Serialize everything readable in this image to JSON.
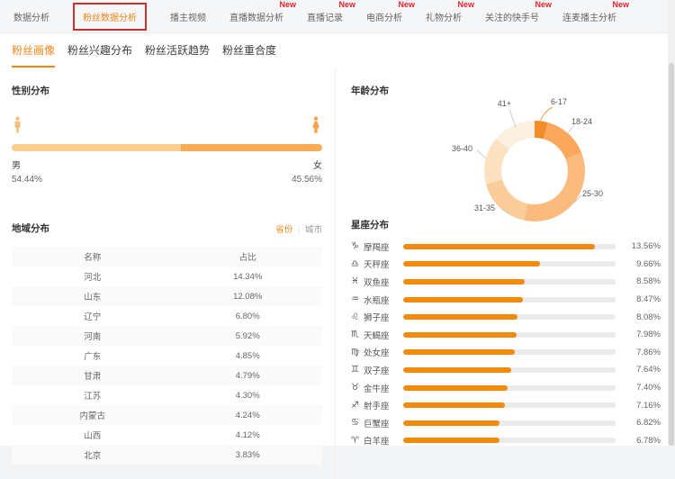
{
  "ui": {
    "topnav": {
      "new_badge": "New",
      "items": [
        {
          "id": "data-analysis",
          "label": "数据分析",
          "new": false,
          "active": false,
          "boxed": false
        },
        {
          "id": "fan-data-analysis",
          "label": "粉丝数据分析",
          "new": false,
          "active": true,
          "boxed": true
        },
        {
          "id": "host-video",
          "label": "播主视频",
          "new": false,
          "active": false,
          "boxed": false
        },
        {
          "id": "live-data-analysis",
          "label": "直播数据分析",
          "new": true,
          "active": false,
          "boxed": false
        },
        {
          "id": "live-record",
          "label": "直播记录",
          "new": true,
          "active": false,
          "boxed": false
        },
        {
          "id": "ecommerce-analysis",
          "label": "电商分析",
          "new": true,
          "active": false,
          "boxed": false
        },
        {
          "id": "gift-analysis",
          "label": "礼物分析",
          "new": true,
          "active": false,
          "boxed": false
        },
        {
          "id": "followed-kuaishou-accounts",
          "label": "关注的快手号",
          "new": true,
          "active": false,
          "boxed": false
        },
        {
          "id": "co-host-analysis",
          "label": "连麦播主分析",
          "new": true,
          "active": false,
          "boxed": false
        }
      ]
    },
    "subtabs": [
      {
        "id": "fan-portrait",
        "label": "粉丝画像",
        "active": true
      },
      {
        "id": "fan-interest-distribution",
        "label": "粉丝兴趣分布",
        "active": false
      },
      {
        "id": "fan-activity-trend",
        "label": "粉丝活跃趋势",
        "active": false
      },
      {
        "id": "fan-overlap",
        "label": "粉丝重合度",
        "active": false
      }
    ],
    "region_toggle": {
      "province": "省份",
      "divider": "|",
      "city": "城市",
      "active": "province"
    },
    "colors": {
      "accent": "#F28A0C",
      "active_tab": "#F0861A",
      "new_badge": "#E8222D",
      "annotation_box": "#C9302C",
      "bar_track": "#EBEBEB",
      "male": "#F9CE8F",
      "female": "#F8AC57"
    }
  },
  "chart_data": [
    {
      "type": "bar",
      "orientation": "horizontal-stacked",
      "title": "性别分布",
      "categories": [
        "男",
        "女"
      ],
      "values": [
        54.44,
        45.56
      ],
      "labels": [
        "54.44%",
        "45.56%"
      ],
      "colors": [
        "#F9CE8F",
        "#F8AC57"
      ]
    },
    {
      "type": "table",
      "title": "地域分布",
      "columns": [
        "名称",
        "占比"
      ],
      "rows": [
        [
          "河北",
          "14.34%"
        ],
        [
          "山东",
          "12.08%"
        ],
        [
          "辽宁",
          "6.80%"
        ],
        [
          "河南",
          "5.92%"
        ],
        [
          "广东",
          "4.85%"
        ],
        [
          "甘肃",
          "4.79%"
        ],
        [
          "江苏",
          "4.30%"
        ],
        [
          "内蒙古",
          "4.24%"
        ],
        [
          "山西",
          "4.12%"
        ],
        [
          "北京",
          "3.83%"
        ]
      ]
    },
    {
      "type": "pie",
      "donut": true,
      "title": "年龄分布",
      "labels": [
        "6-17",
        "18-24",
        "25-30",
        "31-35",
        "36-40",
        "41+"
      ],
      "angles_deg": [
        [
          0,
          15
        ],
        [
          15,
          68
        ],
        [
          68,
          192
        ],
        [
          192,
          255
        ],
        [
          255,
          310
        ],
        [
          310,
          360
        ]
      ],
      "values_pct_est": [
        4.2,
        14.7,
        34.4,
        17.5,
        15.3,
        13.9
      ],
      "colors": [
        "#F18D29",
        "#F9A85C",
        "#FBBB7E",
        "#FACD9B",
        "#FBE2C1",
        "#FCF1E1"
      ],
      "value_labels_shown": false
    },
    {
      "type": "bar",
      "orientation": "horizontal",
      "title": "星座分布",
      "xlim": [
        0,
        15
      ],
      "bar_color": "#F28A0C",
      "track_color": "#EBEBEB",
      "icons": [
        "♑",
        "♎",
        "♓",
        "♒",
        "♌",
        "♏",
        "♍",
        "♊",
        "♉",
        "♐",
        "♋",
        "♈"
      ],
      "categories": [
        "摩羯座",
        "天秤座",
        "双鱼座",
        "水瓶座",
        "狮子座",
        "天蝎座",
        "处女座",
        "双子座",
        "金牛座",
        "射手座",
        "巨蟹座",
        "白羊座"
      ],
      "values": [
        13.56,
        9.66,
        8.58,
        8.47,
        8.08,
        7.98,
        7.86,
        7.64,
        7.4,
        7.16,
        6.82,
        6.78
      ],
      "labels": [
        "13.56%",
        "9.66%",
        "8.58%",
        "8.47%",
        "8.08%",
        "7.98%",
        "7.86%",
        "7.64%",
        "7.40%",
        "7.16%",
        "6.82%",
        "6.78%"
      ]
    }
  ]
}
